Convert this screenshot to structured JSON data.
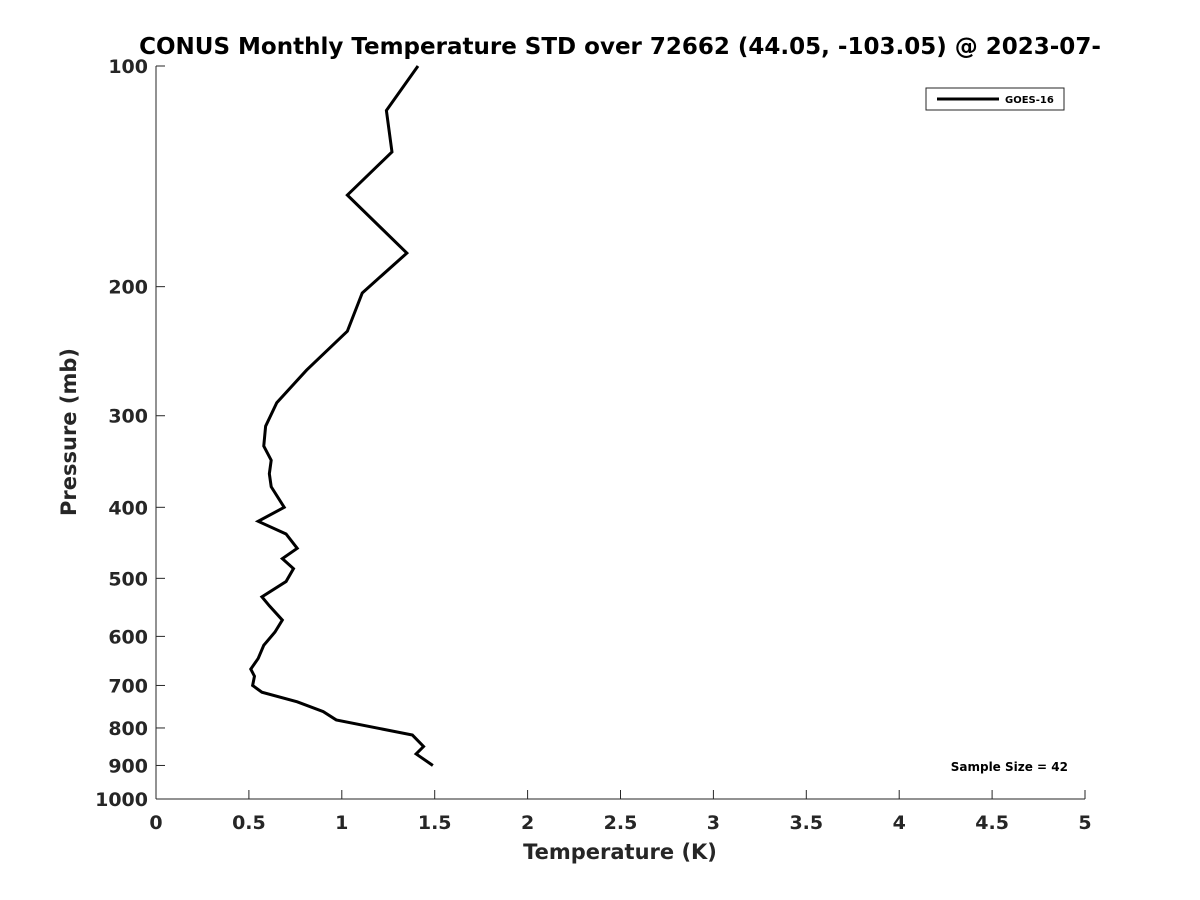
{
  "chart_data": {
    "type": "line",
    "title": "CONUS Monthly Temperature STD over 72662 (44.05, -103.05) @ 2023-07-",
    "xlabel": "Temperature (K)",
    "ylabel": "Pressure (mb)",
    "xlim": [
      0,
      5
    ],
    "ylim": [
      100,
      1000
    ],
    "y_scale": "log",
    "y_reversed": true,
    "grid": false,
    "legend_position": "top-right",
    "x_ticks": [
      "0",
      "0.5",
      "1",
      "1.5",
      "2",
      "2.5",
      "3",
      "3.5",
      "4",
      "4.5",
      "5"
    ],
    "y_ticks": [
      "100",
      "200",
      "300",
      "400",
      "500",
      "600",
      "700",
      "800",
      "900",
      "1000"
    ],
    "annotation": "Sample Size = 42",
    "series": [
      {
        "name": "GOES-16",
        "color": "#000000",
        "x": [
          1.41,
          1.24,
          1.27,
          1.03,
          1.35,
          1.11,
          1.03,
          0.81,
          0.65,
          0.59,
          0.58,
          0.62,
          0.61,
          0.62,
          0.69,
          0.55,
          0.7,
          0.76,
          0.68,
          0.74,
          0.7,
          0.57,
          0.61,
          0.68,
          0.64,
          0.58,
          0.55,
          0.51,
          0.53,
          0.52,
          0.57,
          0.76,
          0.9,
          0.97,
          1.38,
          1.44,
          1.4,
          1.49
        ],
        "y": [
          100,
          115,
          131,
          150,
          180,
          204,
          230,
          260,
          288,
          310,
          330,
          345,
          360,
          375,
          400,
          418,
          435,
          455,
          470,
          485,
          505,
          530,
          545,
          570,
          592,
          617,
          643,
          665,
          680,
          700,
          715,
          737,
          760,
          780,
          818,
          848,
          868,
          900
        ]
      }
    ]
  }
}
